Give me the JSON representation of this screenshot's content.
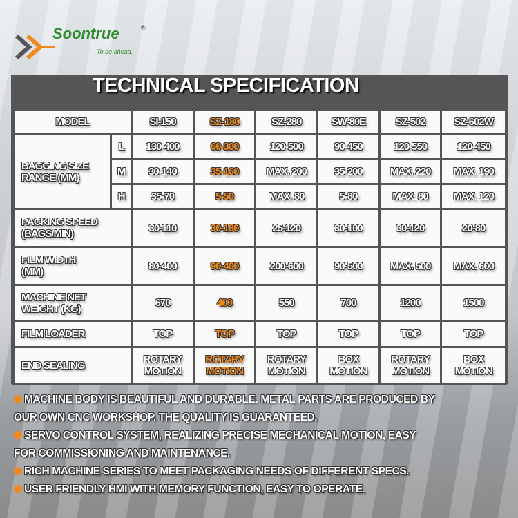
{
  "brand": {
    "name": "Soontrue",
    "tagline": "To be ahead.",
    "registered": "®",
    "accent": "#f08a1c",
    "green": "#2e8b2e"
  },
  "title": "TECHNICAL SPECIFICATION",
  "table": {
    "model_label": "MODEL",
    "models": [
      "SI-150",
      "SZ-180",
      "SZ-280",
      "SW-80E",
      "SZ-502",
      "SZ-602W"
    ],
    "highlight_model": "SZ-180",
    "bagging": {
      "label_line1": "BAGGING SIZE",
      "label_line2": "RANGE (MM)",
      "rows": [
        {
          "dim": "L",
          "values": [
            "130-400",
            "60-300",
            "120-500",
            "90-450",
            "120-550",
            "120-450"
          ]
        },
        {
          "dim": "M",
          "values": [
            "30-140",
            "35-160",
            "MAX. 200",
            "35-200",
            "MAX. 220",
            "MAX. 190"
          ]
        },
        {
          "dim": "H",
          "values": [
            "35-70",
            "5-50",
            "MAX. 80",
            "5-80",
            "MAX. 80",
            "MAX. 120"
          ]
        }
      ]
    },
    "rows": [
      {
        "label_line1": "PACKING SPEED",
        "label_line2": "(BAGS/MIN)",
        "values": [
          "30-110",
          "30-180",
          "25-120",
          "30-100",
          "30-120",
          "20-80"
        ]
      },
      {
        "label_line1": "FILM WIDTH",
        "label_line2": "(MM)",
        "values": [
          "80-400",
          "90-400",
          "200-600",
          "90-500",
          "MAX. 500",
          "MAX. 600"
        ]
      },
      {
        "label_line1": "MACHINE NET",
        "label_line2": "WEIGHT (KG)",
        "values": [
          "670",
          "400",
          "550",
          "700",
          "1200",
          "1500"
        ]
      },
      {
        "label_line1": "FILM LOADER",
        "label_line2": "",
        "values": [
          "TOP",
          "TOP",
          "TOP",
          "TOP",
          "TOP",
          "TOP"
        ]
      }
    ],
    "end_sealing": {
      "label": "END SEALING",
      "values": [
        [
          "ROTARY",
          "MOTION"
        ],
        [
          "ROTARY",
          "MOTION"
        ],
        [
          "ROTARY",
          "MOTION"
        ],
        [
          "BOX",
          "MOTION"
        ],
        [
          "ROTARY",
          "MOTION"
        ],
        [
          "BOX",
          "MOTION"
        ]
      ]
    }
  },
  "features": [
    {
      "line1": "MACHINE BODY IS BEAUTIFUL AND DURABLE. METAL PARTS ARE PRODUCED BY",
      "line2": "OUR OWN CNC WORKSHOP. THE QUALITY IS GUARANTEED."
    },
    {
      "line1": "SERVO CONTROL SYSTEM, REALIZING PRECISE MECHANICAL MOTION, EASY",
      "line2": "FOR COMMISSIONING AND MAINTENANCE."
    },
    {
      "line1": "RICH MACHINE SERIES TO MEET PACKAGING NEEDS OF DIFFERENT SPECS.",
      "line2": ""
    },
    {
      "line1": "USER FRIENDLY HMI WITH MEMORY FUNCTION, EASY TO OPERATE.",
      "line2": ""
    }
  ]
}
